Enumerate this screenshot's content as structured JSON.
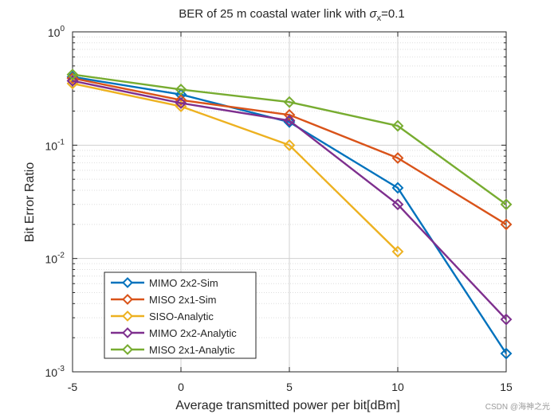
{
  "chart_data": {
    "type": "line",
    "title": "BER of 25 m coastal water link with σx=0.1",
    "title_parts": {
      "prefix": "BER of 25 m coastal water link with ",
      "symbol": "σ",
      "subscript": "x",
      "suffix": "=0.1"
    },
    "xlabel": "Average transmitted power per bit[dBm]",
    "ylabel": "Bit Error Ratio",
    "x": [
      -5,
      0,
      5,
      10,
      15
    ],
    "xlim": [
      -5,
      15
    ],
    "xticks": [
      "-5",
      "0",
      "5",
      "10",
      "15"
    ],
    "ylim": [
      0.001,
      1
    ],
    "yscale": "log",
    "yticks": [
      {
        "value": 1,
        "base": "10",
        "exp": "0"
      },
      {
        "value": 0.1,
        "base": "10",
        "exp": "-1"
      },
      {
        "value": 0.01,
        "base": "10",
        "exp": "-2"
      },
      {
        "value": 0.001,
        "base": "10",
        "exp": "-3"
      }
    ],
    "grid": true,
    "legend_position": "bottom-left",
    "marker": "diamond",
    "series": [
      {
        "name": "MIMO 2x2-Sim",
        "color": "#0072BD",
        "points": [
          [
            -5,
            0.4
          ],
          [
            0,
            0.28
          ],
          [
            5,
            0.16
          ],
          [
            10,
            0.042
          ],
          [
            15,
            0.00145
          ]
        ]
      },
      {
        "name": "MISO 2x1-Sim",
        "color": "#D95319",
        "points": [
          [
            -5,
            0.39
          ],
          [
            0,
            0.25
          ],
          [
            5,
            0.185
          ],
          [
            10,
            0.077
          ],
          [
            15,
            0.02
          ]
        ]
      },
      {
        "name": "SISO-Analytic",
        "color": "#EDB120",
        "points": [
          [
            -5,
            0.35
          ],
          [
            0,
            0.22
          ],
          [
            5,
            0.1
          ],
          [
            10,
            0.0115
          ]
        ]
      },
      {
        "name": "MIMO 2x2-Analytic",
        "color": "#7E2F8E",
        "points": [
          [
            -5,
            0.37
          ],
          [
            0,
            0.235
          ],
          [
            5,
            0.165
          ],
          [
            10,
            0.03
          ],
          [
            15,
            0.0029
          ]
        ]
      },
      {
        "name": "MISO 2x1-Analytic",
        "color": "#77AC30",
        "points": [
          [
            -5,
            0.42
          ],
          [
            0,
            0.31
          ],
          [
            5,
            0.24
          ],
          [
            10,
            0.148
          ],
          [
            15,
            0.03
          ]
        ]
      }
    ]
  },
  "watermark": "CSDN @海神之光"
}
